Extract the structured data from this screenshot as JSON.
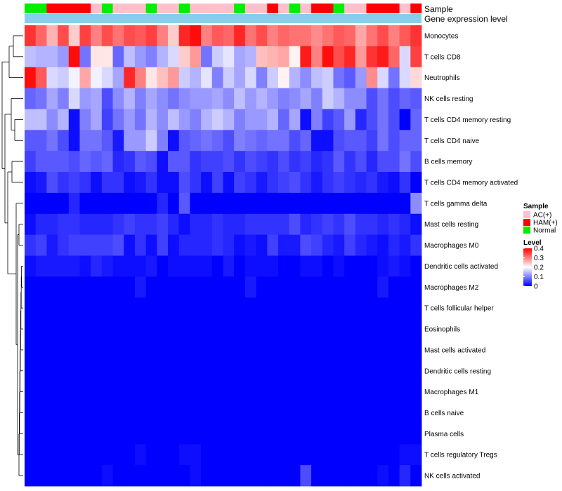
{
  "chart_data": {
    "type": "heatmap",
    "title": "",
    "annotation_tracks": [
      "Sample",
      "Gene expression level"
    ],
    "legend_sample": {
      "title": "Sample",
      "entries": [
        {
          "label": "AC(+)",
          "color": "#ffc0cb"
        },
        {
          "label": "HAM(+)",
          "color": "#ff0000"
        },
        {
          "label": "Normal",
          "color": "#00ee00"
        }
      ]
    },
    "legend_level": {
      "title": "Level",
      "ticks": [
        "0.4",
        "0.3",
        "0.2",
        "0.1",
        "0"
      ],
      "tick_values": [
        0.4,
        0.3,
        0.2,
        0.1,
        0
      ],
      "range": [
        0,
        0.4
      ],
      "colors": {
        "low": "#0000ff",
        "mid": "#ffffff",
        "high": "#ff0000"
      }
    },
    "gene_expression_color": "#87ceeb",
    "sample_groups": [
      "Normal",
      "Normal",
      "HAM(+)",
      "HAM(+)",
      "HAM(+)",
      "HAM(+)",
      "AC(+)",
      "Normal",
      "AC(+)",
      "AC(+)",
      "AC(+)",
      "Normal",
      "AC(+)",
      "AC(+)",
      "Normal",
      "AC(+)",
      "AC(+)",
      "AC(+)",
      "AC(+)",
      "Normal",
      "AC(+)",
      "AC(+)",
      "HAM(+)",
      "AC(+)",
      "Normal",
      "AC(+)",
      "HAM(+)",
      "HAM(+)",
      "Normal",
      "AC(+)",
      "AC(+)",
      "HAM(+)",
      "HAM(+)",
      "HAM(+)",
      "AC(+)",
      "HAM(+)"
    ],
    "rows": [
      "Monocytes",
      "T cells CD8",
      "Neutrophils",
      "NK cells resting",
      "T cells CD4 memory resting",
      "T cells CD4 naive",
      "B cells memory",
      "T cells CD4 memory activated",
      "T cells gamma delta",
      "Mast cells resting",
      "Macrophages M0",
      "Dendritic cells activated",
      "Macrophages M2",
      "T cells follicular helper",
      "Eosinophils",
      "Mast cells activated",
      "Dendritic cells resting",
      "Macrophages M1",
      "B cells naive",
      "Plasma cells",
      "T cells regulatory  Tregs",
      "NK cells activated"
    ],
    "values": [
      [
        0.36,
        0.32,
        0.26,
        0.34,
        0.24,
        0.35,
        0.3,
        0.34,
        0.31,
        0.34,
        0.33,
        0.35,
        0.3,
        0.24,
        0.37,
        0.39,
        0.3,
        0.33,
        0.32,
        0.37,
        0.31,
        0.34,
        0.3,
        0.32,
        0.31,
        0.31,
        0.29,
        0.31,
        0.33,
        0.32,
        0.27,
        0.31,
        0.34,
        0.3,
        0.33,
        0.36
      ],
      [
        0.15,
        0.14,
        0.14,
        0.12,
        0.39,
        0.09,
        0.22,
        0.22,
        0.08,
        0.15,
        0.12,
        0.1,
        0.14,
        0.17,
        0.24,
        0.28,
        0.09,
        0.16,
        0.18,
        0.13,
        0.14,
        0.25,
        0.26,
        0.27,
        0.21,
        0.38,
        0.3,
        0.39,
        0.34,
        0.37,
        0.28,
        0.36,
        0.38,
        0.32,
        0.17,
        0.35
      ],
      [
        0.39,
        0.33,
        0.17,
        0.16,
        0.19,
        0.27,
        0.19,
        0.17,
        0.13,
        0.37,
        0.3,
        0.22,
        0.25,
        0.28,
        0.16,
        0.14,
        0.18,
        0.1,
        0.16,
        0.13,
        0.17,
        0.1,
        0.16,
        0.21,
        0.14,
        0.11,
        0.15,
        0.16,
        0.09,
        0.07,
        0.12,
        0.29,
        0.17,
        0.09,
        0.17,
        0.23
      ],
      [
        0.08,
        0.09,
        0.13,
        0.1,
        0.17,
        0.12,
        0.13,
        0.06,
        0.11,
        0.14,
        0.1,
        0.13,
        0.11,
        0.09,
        0.11,
        0.12,
        0.12,
        0.13,
        0.11,
        0.15,
        0.12,
        0.14,
        0.12,
        0.1,
        0.11,
        0.13,
        0.1,
        0.16,
        0.14,
        0.11,
        0.11,
        0.06,
        0.09,
        0.06,
        0.08,
        0.07
      ],
      [
        0.15,
        0.15,
        0.11,
        0.14,
        0.01,
        0.1,
        0.13,
        0.05,
        0.09,
        0.12,
        0.09,
        0.14,
        0.11,
        0.15,
        0.12,
        0.1,
        0.14,
        0.16,
        0.14,
        0.1,
        0.12,
        0.12,
        0.14,
        0.08,
        0.13,
        0.01,
        0.1,
        0.05,
        0.07,
        0.12,
        0.03,
        0.06,
        0.09,
        0.06,
        0.0,
        0.08
      ],
      [
        0.07,
        0.07,
        0.09,
        0.06,
        0.01,
        0.09,
        0.09,
        0.07,
        0.02,
        0.12,
        0.12,
        0.16,
        0.1,
        0.01,
        0.07,
        0.08,
        0.09,
        0.08,
        0.06,
        0.1,
        0.09,
        0.08,
        0.09,
        0.09,
        0.06,
        0.08,
        0.01,
        0.01,
        0.06,
        0.07,
        0.07,
        0.05,
        0.09,
        0.06,
        0.08,
        0.08
      ],
      [
        0.05,
        0.07,
        0.07,
        0.07,
        0.06,
        0.08,
        0.07,
        0.08,
        0.03,
        0.04,
        0.07,
        0.06,
        0.01,
        0.07,
        0.07,
        0.04,
        0.05,
        0.05,
        0.06,
        0.04,
        0.06,
        0.05,
        0.04,
        0.06,
        0.04,
        0.05,
        0.03,
        0.04,
        0.07,
        0.04,
        0.06,
        0.03,
        0.06,
        0.06,
        0.09,
        0.06
      ],
      [
        0.01,
        0.02,
        0.06,
        0.04,
        0.05,
        0.04,
        0.01,
        0.04,
        0.04,
        0.01,
        0.02,
        0.04,
        0.01,
        0.01,
        0.06,
        0.04,
        0.01,
        0.05,
        0.01,
        0.05,
        0.04,
        0.02,
        0.04,
        0.05,
        0.06,
        0.04,
        0.02,
        0.04,
        0.05,
        0.04,
        0.03,
        0.04,
        0.02,
        0.01,
        0.04,
        0.0
      ],
      [
        0.0,
        0.0,
        0.0,
        0.0,
        0.03,
        0.0,
        0.0,
        0.0,
        0.0,
        0.0,
        0.0,
        0.0,
        0.03,
        0.0,
        0.07,
        0.0,
        0.0,
        0.0,
        0.0,
        0.0,
        0.0,
        0.0,
        0.0,
        0.0,
        0.0,
        0.0,
        0.0,
        0.0,
        0.0,
        0.0,
        0.0,
        0.0,
        0.0,
        0.0,
        0.0,
        0.11
      ],
      [
        0.01,
        0.03,
        0.03,
        0.04,
        0.04,
        0.03,
        0.03,
        0.03,
        0.04,
        0.05,
        0.04,
        0.04,
        0.05,
        0.03,
        0.01,
        0.03,
        0.03,
        0.04,
        0.03,
        0.03,
        0.04,
        0.04,
        0.04,
        0.04,
        0.06,
        0.03,
        0.04,
        0.05,
        0.04,
        0.06,
        0.04,
        0.04,
        0.03,
        0.04,
        0.03,
        0.01
      ],
      [
        0.04,
        0.05,
        0.02,
        0.04,
        0.05,
        0.05,
        0.05,
        0.05,
        0.06,
        0.01,
        0.04,
        0.01,
        0.05,
        0.01,
        0.03,
        0.03,
        0.03,
        0.04,
        0.03,
        0.01,
        0.02,
        0.01,
        0.05,
        0.02,
        0.02,
        0.06,
        0.05,
        0.03,
        0.02,
        0.05,
        0.03,
        0.02,
        0.01,
        0.03,
        0.02,
        0.04
      ],
      [
        0.01,
        0.02,
        0.02,
        0.02,
        0.02,
        0.01,
        0.03,
        0.02,
        0.01,
        0.01,
        0.01,
        0.02,
        0.0,
        0.01,
        0.01,
        0.01,
        0.01,
        0.0,
        0.02,
        0.0,
        0.01,
        0.01,
        0.01,
        0.0,
        0.0,
        0.01,
        0.01,
        0.0,
        0.01,
        0.0,
        0.0,
        0.0,
        0.01,
        0.02,
        0.01,
        0.0
      ],
      [
        0.0,
        0.0,
        0.0,
        0.0,
        0.0,
        0.0,
        0.0,
        0.0,
        0.0,
        0.0,
        0.02,
        0.0,
        0.0,
        0.0,
        0.0,
        0.0,
        0.0,
        0.0,
        0.0,
        0.0,
        0.02,
        0.0,
        0.0,
        0.0,
        0.0,
        0.0,
        0.0,
        0.0,
        0.0,
        0.0,
        0.0,
        0.0,
        0.02,
        0.0,
        0.0,
        0.0
      ],
      [
        0.0,
        0.0,
        0.0,
        0.0,
        0.0,
        0.0,
        0.0,
        0.0,
        0.0,
        0.0,
        0.0,
        0.0,
        0.0,
        0.0,
        0.0,
        0.0,
        0.0,
        0.0,
        0.0,
        0.0,
        0.0,
        0.0,
        0.0,
        0.0,
        0.0,
        0.0,
        0.0,
        0.0,
        0.0,
        0.0,
        0.0,
        0.0,
        0.0,
        0.0,
        0.0,
        0.0
      ],
      [
        0.0,
        0.0,
        0.0,
        0.0,
        0.0,
        0.0,
        0.0,
        0.0,
        0.0,
        0.0,
        0.0,
        0.0,
        0.0,
        0.0,
        0.0,
        0.0,
        0.0,
        0.0,
        0.0,
        0.0,
        0.0,
        0.0,
        0.0,
        0.0,
        0.0,
        0.0,
        0.0,
        0.0,
        0.0,
        0.0,
        0.0,
        0.0,
        0.0,
        0.0,
        0.0,
        0.0
      ],
      [
        0.0,
        0.0,
        0.0,
        0.0,
        0.0,
        0.0,
        0.0,
        0.0,
        0.0,
        0.0,
        0.0,
        0.0,
        0.0,
        0.0,
        0.0,
        0.0,
        0.0,
        0.0,
        0.0,
        0.0,
        0.0,
        0.0,
        0.0,
        0.0,
        0.0,
        0.0,
        0.0,
        0.0,
        0.0,
        0.0,
        0.0,
        0.0,
        0.0,
        0.0,
        0.0,
        0.0
      ],
      [
        0.0,
        0.0,
        0.0,
        0.0,
        0.0,
        0.0,
        0.0,
        0.0,
        0.0,
        0.0,
        0.0,
        0.0,
        0.0,
        0.0,
        0.0,
        0.0,
        0.0,
        0.0,
        0.0,
        0.0,
        0.0,
        0.0,
        0.0,
        0.0,
        0.0,
        0.0,
        0.0,
        0.0,
        0.0,
        0.0,
        0.0,
        0.0,
        0.0,
        0.0,
        0.0,
        0.0
      ],
      [
        0.0,
        0.0,
        0.0,
        0.0,
        0.0,
        0.0,
        0.0,
        0.0,
        0.0,
        0.0,
        0.0,
        0.0,
        0.0,
        0.0,
        0.0,
        0.0,
        0.0,
        0.0,
        0.0,
        0.0,
        0.0,
        0.0,
        0.0,
        0.0,
        0.0,
        0.0,
        0.0,
        0.0,
        0.0,
        0.0,
        0.0,
        0.0,
        0.0,
        0.0,
        0.0,
        0.0
      ],
      [
        0.0,
        0.0,
        0.0,
        0.0,
        0.0,
        0.0,
        0.0,
        0.0,
        0.0,
        0.0,
        0.0,
        0.0,
        0.0,
        0.0,
        0.0,
        0.0,
        0.0,
        0.0,
        0.0,
        0.0,
        0.0,
        0.0,
        0.0,
        0.0,
        0.0,
        0.0,
        0.0,
        0.0,
        0.0,
        0.0,
        0.0,
        0.0,
        0.0,
        0.0,
        0.0,
        0.0
      ],
      [
        0.0,
        0.0,
        0.0,
        0.0,
        0.0,
        0.0,
        0.0,
        0.0,
        0.0,
        0.0,
        0.0,
        0.0,
        0.0,
        0.0,
        0.0,
        0.0,
        0.0,
        0.0,
        0.0,
        0.0,
        0.0,
        0.0,
        0.0,
        0.0,
        0.0,
        0.0,
        0.0,
        0.0,
        0.0,
        0.0,
        0.0,
        0.0,
        0.0,
        0.0,
        0.0,
        0.0
      ],
      [
        0.0,
        0.0,
        0.0,
        0.0,
        0.0,
        0.0,
        0.0,
        0.0,
        0.0,
        0.0,
        0.01,
        0.0,
        0.0,
        0.0,
        0.01,
        0.01,
        0.0,
        0.0,
        0.0,
        0.0,
        0.0,
        0.0,
        0.0,
        0.0,
        0.0,
        0.0,
        0.0,
        0.0,
        0.0,
        0.0,
        0.0,
        0.0,
        0.0,
        0.0,
        0.01,
        0.01
      ],
      [
        0.0,
        0.0,
        0.0,
        0.0,
        0.0,
        0.0,
        0.0,
        0.01,
        0.0,
        0.0,
        0.0,
        0.0,
        0.0,
        0.0,
        0.0,
        0.01,
        0.0,
        0.0,
        0.0,
        0.0,
        0.0,
        0.0,
        0.0,
        0.0,
        0.0,
        0.06,
        0.0,
        0.0,
        0.0,
        0.0,
        0.0,
        0.0,
        0.01,
        0.0,
        0.03,
        0.0
      ]
    ]
  }
}
